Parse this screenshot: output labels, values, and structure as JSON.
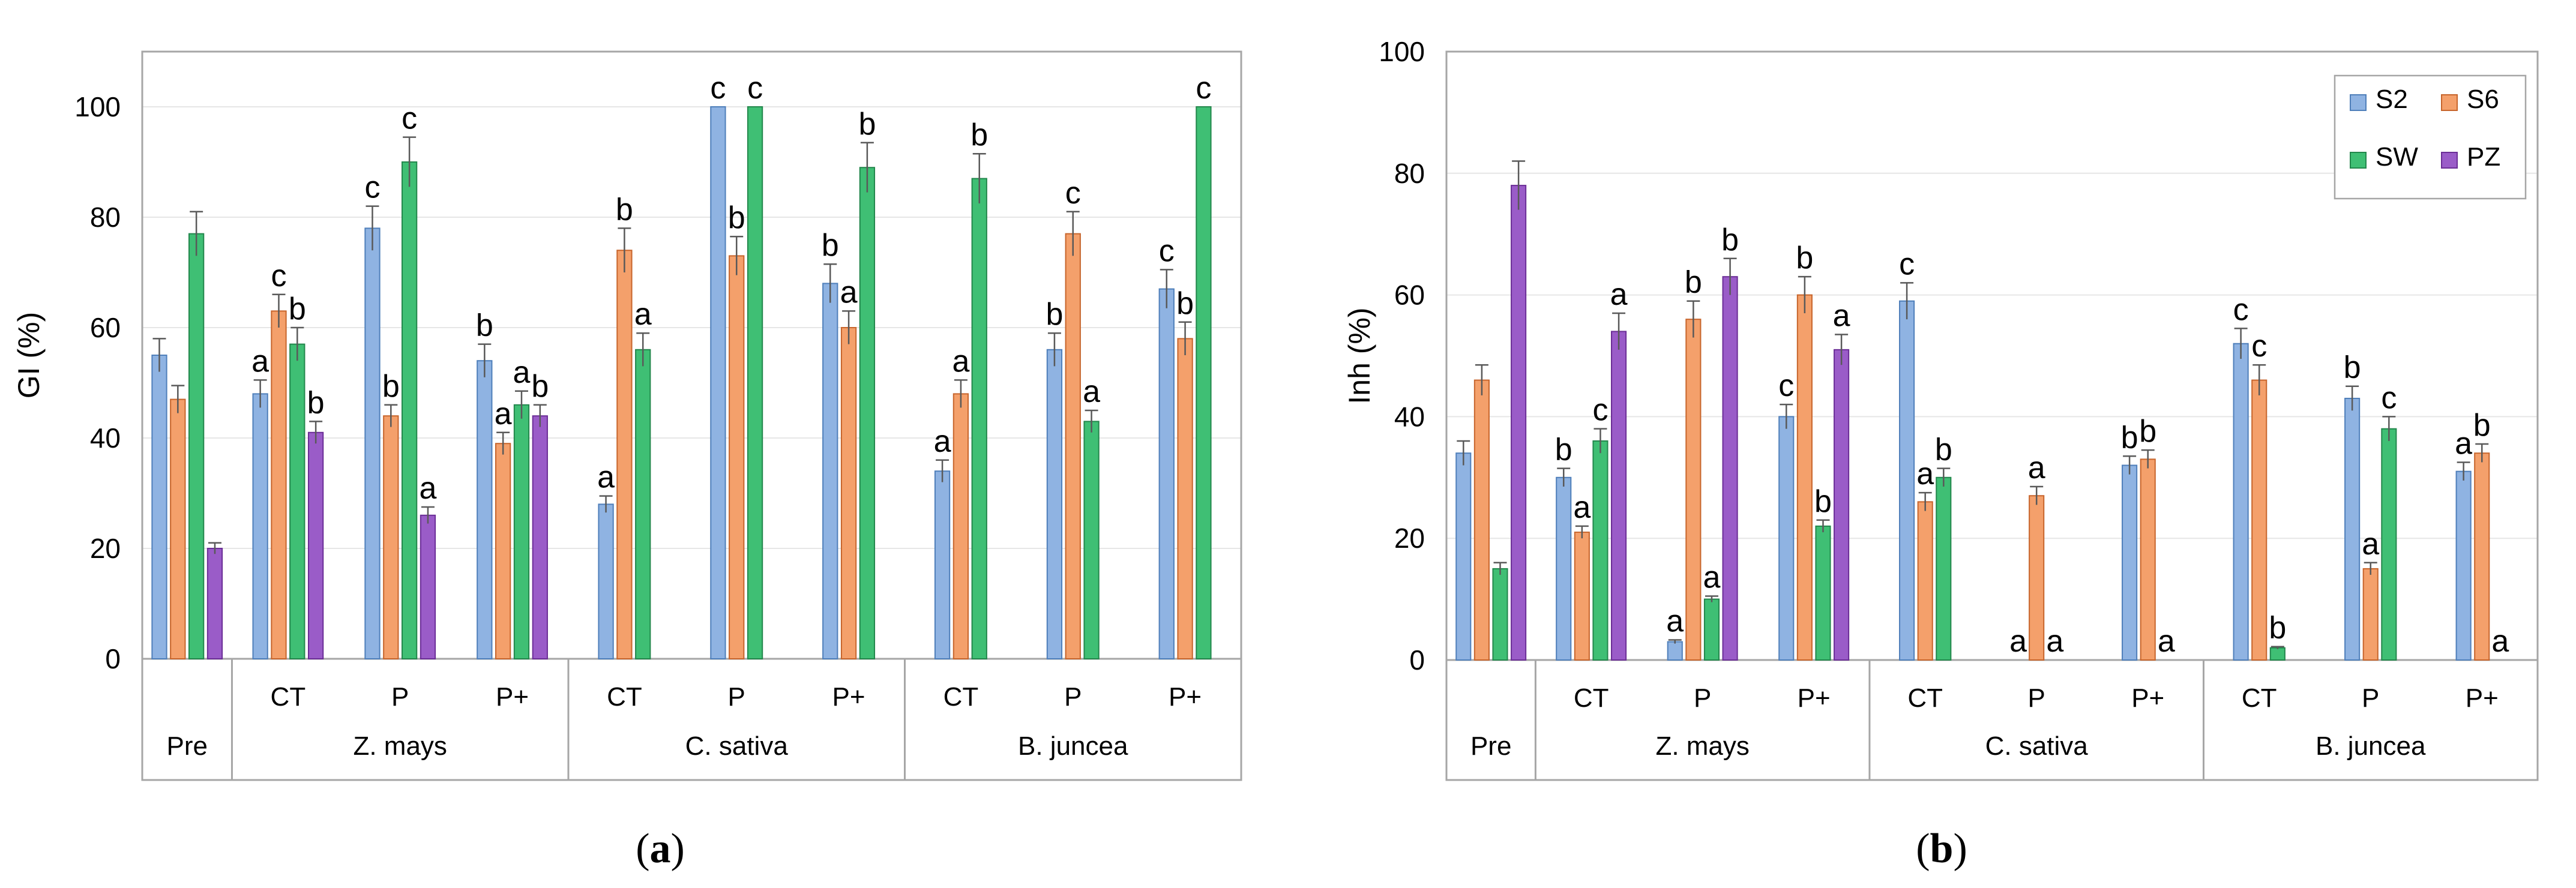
{
  "chart_data": [
    {
      "type": "bar",
      "panel_caption": {
        "open": "(",
        "letter": "a",
        "close": ")"
      },
      "ylabel": "GI (%)",
      "xlabel": "",
      "ylim": [
        0,
        110
      ],
      "yticks": [
        0,
        20,
        40,
        60,
        80,
        100
      ],
      "grid": true,
      "legend": null,
      "series_keys": [
        "S2",
        "S6",
        "SW",
        "PZ"
      ],
      "groups": [
        {
          "name": "Pre",
          "subs": [
            {
              "label": "",
              "bars": [
                {
                  "s": "S2",
                  "v": 55,
                  "e": 3,
                  "l": ""
                },
                {
                  "s": "S6",
                  "v": 47,
                  "e": 2.5,
                  "l": ""
                },
                {
                  "s": "SW",
                  "v": 77,
                  "e": 4,
                  "l": ""
                },
                {
                  "s": "PZ",
                  "v": 20,
                  "e": 1,
                  "l": ""
                }
              ]
            }
          ]
        },
        {
          "name": "Z. mays",
          "subs": [
            {
              "label": "CT",
              "bars": [
                {
                  "s": "S2",
                  "v": 48,
                  "e": 2.5,
                  "l": "a"
                },
                {
                  "s": "S6",
                  "v": 63,
                  "e": 3,
                  "l": "c"
                },
                {
                  "s": "SW",
                  "v": 57,
                  "e": 3,
                  "l": "b"
                },
                {
                  "s": "PZ",
                  "v": 41,
                  "e": 2,
                  "l": "b"
                }
              ]
            },
            {
              "label": "P",
              "bars": [
                {
                  "s": "S2",
                  "v": 78,
                  "e": 4,
                  "l": "c"
                },
                {
                  "s": "S6",
                  "v": 44,
                  "e": 2,
                  "l": "b"
                },
                {
                  "s": "SW",
                  "v": 90,
                  "e": 4.5,
                  "l": "c"
                },
                {
                  "s": "PZ",
                  "v": 26,
                  "e": 1.5,
                  "l": "a"
                }
              ]
            },
            {
              "label": "P+",
              "bars": [
                {
                  "s": "S2",
                  "v": 54,
                  "e": 3,
                  "l": "b"
                },
                {
                  "s": "S6",
                  "v": 39,
                  "e": 2,
                  "l": "a"
                },
                {
                  "s": "SW",
                  "v": 46,
                  "e": 2.5,
                  "l": "a"
                },
                {
                  "s": "PZ",
                  "v": 44,
                  "e": 2,
                  "l": "b"
                }
              ]
            }
          ]
        },
        {
          "name": "C. sativa",
          "subs": [
            {
              "label": "CT",
              "bars": [
                {
                  "s": "S2",
                  "v": 28,
                  "e": 1.5,
                  "l": "a"
                },
                {
                  "s": "S6",
                  "v": 74,
                  "e": 4,
                  "l": "b"
                },
                {
                  "s": "SW",
                  "v": 56,
                  "e": 3,
                  "l": "a"
                }
              ]
            },
            {
              "label": "P",
              "bars": [
                {
                  "s": "S2",
                  "v": 100,
                  "e": 0,
                  "l": "c"
                },
                {
                  "s": "S6",
                  "v": 73,
                  "e": 3.5,
                  "l": "b"
                },
                {
                  "s": "SW",
                  "v": 100,
                  "e": 0,
                  "l": "c"
                }
              ]
            },
            {
              "label": "P+",
              "bars": [
                {
                  "s": "S2",
                  "v": 68,
                  "e": 3.5,
                  "l": "b"
                },
                {
                  "s": "S6",
                  "v": 60,
                  "e": 3,
                  "l": "a"
                },
                {
                  "s": "SW",
                  "v": 89,
                  "e": 4.5,
                  "l": "b"
                }
              ]
            }
          ]
        },
        {
          "name": "B. juncea",
          "subs": [
            {
              "label": "CT",
              "bars": [
                {
                  "s": "S2",
                  "v": 34,
                  "e": 2,
                  "l": "a"
                },
                {
                  "s": "S6",
                  "v": 48,
                  "e": 2.5,
                  "l": "a"
                },
                {
                  "s": "SW",
                  "v": 87,
                  "e": 4.5,
                  "l": "b"
                }
              ]
            },
            {
              "label": "P",
              "bars": [
                {
                  "s": "S2",
                  "v": 56,
                  "e": 3,
                  "l": "b"
                },
                {
                  "s": "S6",
                  "v": 77,
                  "e": 4,
                  "l": "c"
                },
                {
                  "s": "SW",
                  "v": 43,
                  "e": 2,
                  "l": "a"
                }
              ]
            },
            {
              "label": "P+",
              "bars": [
                {
                  "s": "S2",
                  "v": 67,
                  "e": 3.5,
                  "l": "c"
                },
                {
                  "s": "S6",
                  "v": 58,
                  "e": 3,
                  "l": "b"
                },
                {
                  "s": "SW",
                  "v": 100,
                  "e": 0,
                  "l": "c"
                }
              ]
            }
          ]
        }
      ]
    },
    {
      "type": "bar",
      "panel_caption": {
        "open": "(",
        "letter": "b",
        "close": ")"
      },
      "ylabel": "Inh (%)",
      "xlabel": "",
      "ylim": [
        0,
        100
      ],
      "yticks": [
        0,
        20,
        40,
        60,
        80,
        100
      ],
      "grid": true,
      "legend": {
        "placement": "top-right",
        "items": [
          "S2",
          "S6",
          "SW",
          "PZ"
        ]
      },
      "series_keys": [
        "S2",
        "S6",
        "SW",
        "PZ"
      ],
      "groups": [
        {
          "name": "Pre",
          "subs": [
            {
              "label": "",
              "bars": [
                {
                  "s": "S2",
                  "v": 34,
                  "e": 2,
                  "l": ""
                },
                {
                  "s": "S6",
                  "v": 46,
                  "e": 2.5,
                  "l": ""
                },
                {
                  "s": "SW",
                  "v": 15,
                  "e": 1,
                  "l": ""
                },
                {
                  "s": "PZ",
                  "v": 78,
                  "e": 4,
                  "l": ""
                }
              ]
            }
          ]
        },
        {
          "name": "Z. mays",
          "subs": [
            {
              "label": "CT",
              "bars": [
                {
                  "s": "S2",
                  "v": 30,
                  "e": 1.5,
                  "l": "b"
                },
                {
                  "s": "S6",
                  "v": 21,
                  "e": 1,
                  "l": "a"
                },
                {
                  "s": "SW",
                  "v": 36,
                  "e": 2,
                  "l": "c"
                },
                {
                  "s": "PZ",
                  "v": 54,
                  "e": 3,
                  "l": "a"
                }
              ]
            },
            {
              "label": "P",
              "bars": [
                {
                  "s": "S2",
                  "v": 3,
                  "e": 0.3,
                  "l": "a"
                },
                {
                  "s": "S6",
                  "v": 56,
                  "e": 3,
                  "l": "b"
                },
                {
                  "s": "SW",
                  "v": 10,
                  "e": 0.5,
                  "l": "a"
                },
                {
                  "s": "PZ",
                  "v": 63,
                  "e": 3,
                  "l": "b"
                }
              ]
            },
            {
              "label": "P+",
              "bars": [
                {
                  "s": "S2",
                  "v": 40,
                  "e": 2,
                  "l": "c"
                },
                {
                  "s": "S6",
                  "v": 60,
                  "e": 3,
                  "l": "b"
                },
                {
                  "s": "SW",
                  "v": 22,
                  "e": 1,
                  "l": "b"
                },
                {
                  "s": "PZ",
                  "v": 51,
                  "e": 2.5,
                  "l": "a"
                }
              ]
            }
          ]
        },
        {
          "name": "C. sativa",
          "subs": [
            {
              "label": "CT",
              "bars": [
                {
                  "s": "S2",
                  "v": 59,
                  "e": 3,
                  "l": "c"
                },
                {
                  "s": "S6",
                  "v": 26,
                  "e": 1.5,
                  "l": "a"
                },
                {
                  "s": "SW",
                  "v": 30,
                  "e": 1.5,
                  "l": "b"
                }
              ]
            },
            {
              "label": "P",
              "bars": [
                {
                  "s": "S2",
                  "v": 0,
                  "e": 0,
                  "l": "a"
                },
                {
                  "s": "S6",
                  "v": 27,
                  "e": 1.5,
                  "l": "a"
                },
                {
                  "s": "SW",
                  "v": 0,
                  "e": 0,
                  "l": "a"
                }
              ]
            },
            {
              "label": "P+",
              "bars": [
                {
                  "s": "S2",
                  "v": 32,
                  "e": 1.5,
                  "l": "b"
                },
                {
                  "s": "S6",
                  "v": 33,
                  "e": 1.5,
                  "l": "b"
                },
                {
                  "s": "SW",
                  "v": 0,
                  "e": 0,
                  "l": "a"
                }
              ]
            }
          ]
        },
        {
          "name": "B. juncea",
          "subs": [
            {
              "label": "CT",
              "bars": [
                {
                  "s": "S2",
                  "v": 52,
                  "e": 2.5,
                  "l": "c"
                },
                {
                  "s": "S6",
                  "v": 46,
                  "e": 2.5,
                  "l": "c"
                },
                {
                  "s": "SW",
                  "v": 2,
                  "e": 0.2,
                  "l": "b"
                }
              ]
            },
            {
              "label": "P",
              "bars": [
                {
                  "s": "S2",
                  "v": 43,
                  "e": 2,
                  "l": "b"
                },
                {
                  "s": "S6",
                  "v": 15,
                  "e": 1,
                  "l": "a"
                },
                {
                  "s": "SW",
                  "v": 38,
                  "e": 2,
                  "l": "c"
                }
              ]
            },
            {
              "label": "P+",
              "bars": [
                {
                  "s": "S2",
                  "v": 31,
                  "e": 1.5,
                  "l": "a"
                },
                {
                  "s": "S6",
                  "v": 34,
                  "e": 1.5,
                  "l": "b"
                },
                {
                  "s": "SW",
                  "v": 0,
                  "e": 0,
                  "l": "a"
                }
              ]
            }
          ]
        }
      ]
    }
  ],
  "colors": {
    "S2": "#8fb3e2",
    "S6": "#f4a06b",
    "SW": "#3fbf74",
    "PZ": "#9a5cc8",
    "S2_edge": "#4f7fba",
    "S6_edge": "#c7652c",
    "SW_edge": "#23874c",
    "PZ_edge": "#6b2e96",
    "axis": "#a6a6a6",
    "grid": "#e6e6e6",
    "errorbar": "#595959"
  }
}
